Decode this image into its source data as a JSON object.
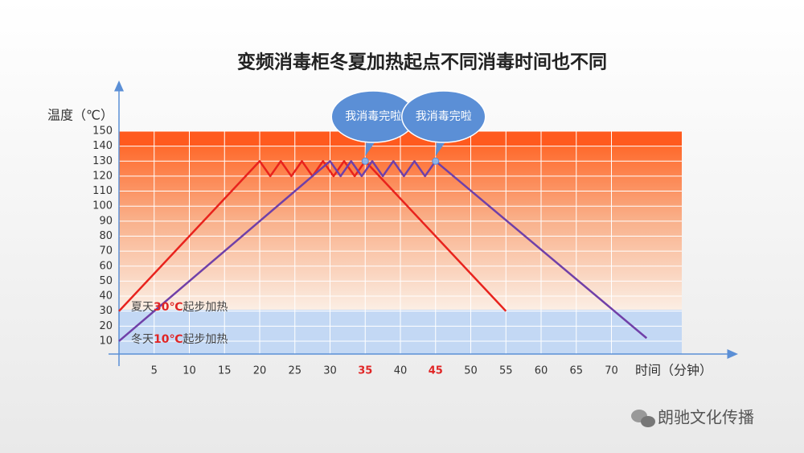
{
  "chart_data": {
    "type": "line",
    "title": "变频消毒柜冬夏加热起点不同消毒时间也不同",
    "y_label": "温度（℃）",
    "x_label": "时间（分钟）",
    "xlim": [
      0,
      80
    ],
    "ylim": [
      0,
      150
    ],
    "xticks": [
      5,
      10,
      15,
      20,
      25,
      30,
      {
        "value": 35,
        "color": "#e02525"
      },
      40,
      {
        "value": 45,
        "color": "#e02525"
      },
      50,
      55,
      60,
      65,
      70
    ],
    "yticks": [
      10,
      20,
      30,
      40,
      50,
      60,
      70,
      80,
      90,
      100,
      110,
      120,
      130,
      140,
      150
    ],
    "grid": true,
    "series": [
      {
        "name": "夏天",
        "color": "#e8231d",
        "x": [
          0,
          20,
          21.5,
          23,
          24.5,
          26,
          27.5,
          29,
          30.5,
          32,
          33.5,
          35,
          55
        ],
        "values": [
          30,
          130,
          120,
          130,
          120,
          130,
          120,
          130,
          120,
          130,
          120,
          130,
          30
        ]
      },
      {
        "name": "冬天",
        "color": "#7040a8",
        "x": [
          0,
          30,
          31.5,
          33,
          34.5,
          36,
          37.5,
          39,
          40.5,
          42,
          43.5,
          45,
          75
        ],
        "values": [
          10,
          130,
          120,
          130,
          120,
          130,
          120,
          130,
          120,
          130,
          120,
          130,
          12
        ]
      }
    ],
    "annotations": [
      {
        "parts": [
          "夏天",
          "30℃",
          "起步加热"
        ],
        "highlight_color": "#e02525"
      },
      {
        "parts": [
          "冬天",
          "10℃",
          "起步加热"
        ],
        "highlight_color": "#e02525"
      }
    ],
    "callouts": [
      "我消毒完啦",
      "我消毒完啦"
    ],
    "watermark": "朗驰文化传播"
  }
}
